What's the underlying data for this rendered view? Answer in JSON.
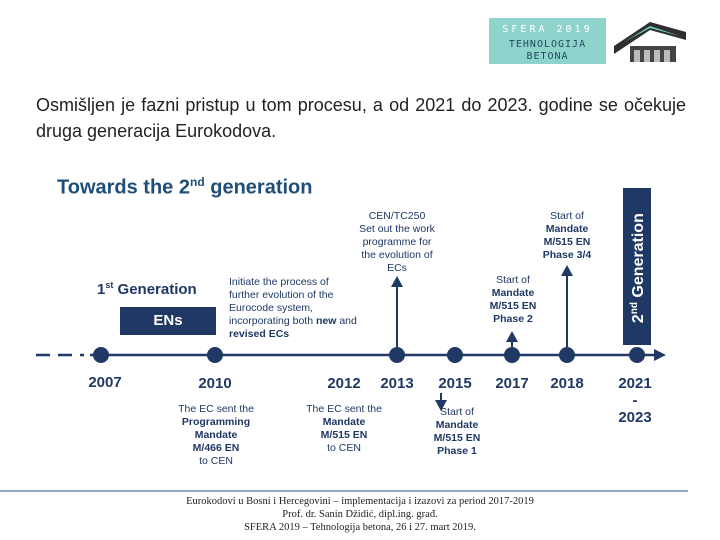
{
  "logo": {
    "line1": "SFERA 2019",
    "line2": "TEHNOLOGIJA",
    "line3": "BETONA"
  },
  "intro_text": "Osmišljen je fazni pristup u tom procesu, a od 2021 do 2023. godine se očekuje druga generacija Eurokodova.",
  "slide": {
    "title_main": "Towards the 2",
    "title_sup": "nd",
    "title_end": " generation",
    "first_gen_main": "1",
    "first_gen_sup": "st",
    "first_gen_end": " Generation",
    "ens_label": "ENs",
    "second_gen_main": "2",
    "second_gen_sup": "nd",
    "second_gen_end": " Generation",
    "note_initiate": {
      "l1": "Initiate the process of",
      "l2": "further evolution of the",
      "l3": "Eurocode system,",
      "l4a": "incorporating both ",
      "l4b": "new",
      "l4c": " and",
      "l5a": "revised ECs",
      "l5b": ""
    },
    "note_cen": {
      "l1": "CEN/TC250",
      "l2": "Set out the work",
      "l3": "programme for",
      "l4": "the evolution of",
      "l5": "ECs"
    },
    "note_start34": {
      "l1": "Start of",
      "l2": "Mandate",
      "l3": "M/515 EN",
      "l4": "Phase 3/4"
    },
    "note_start2": {
      "l1": "Start of",
      "l2": "Mandate",
      "l3": "M/515 EN",
      "l4": "Phase 2"
    },
    "note_prog": {
      "l1": "The EC sent the",
      "l2": "Programming",
      "l3": "Mandate",
      "l4": "M/466 EN",
      "l5": "to CEN"
    },
    "note_mand": {
      "l1": "The EC sent the",
      "l2": "Mandate",
      "l3": "M/515 EN",
      "l4": "to CEN"
    },
    "note_start1": {
      "l1": "Start of",
      "l2": "Mandate",
      "l3": "M/515 EN",
      "l4": "Phase 1"
    },
    "years": {
      "y2007": "2007",
      "y2010": "2010",
      "y2012": "2012",
      "y2013": "2013",
      "y2015": "2015",
      "y2017": "2017",
      "y2018": "2018",
      "y2021": "2021",
      "ydash": "-",
      "y2023": "2023"
    }
  },
  "footer": {
    "line1": "Eurokodovi u Bosni i Hercegovini – implementacija i izazovi za period 2017-2019",
    "line2": "Prof. dr. Sanin Džidić, dipl.ing. građ.",
    "line3": "SFERA 2019 – Tehnologija betona, 26 i 27. mart 2019."
  },
  "colors": {
    "navy": "#1f3864",
    "title_blue": "#1f4e79",
    "logo_teal": "#8fd3cd",
    "timeline_line": "#1f3864"
  }
}
